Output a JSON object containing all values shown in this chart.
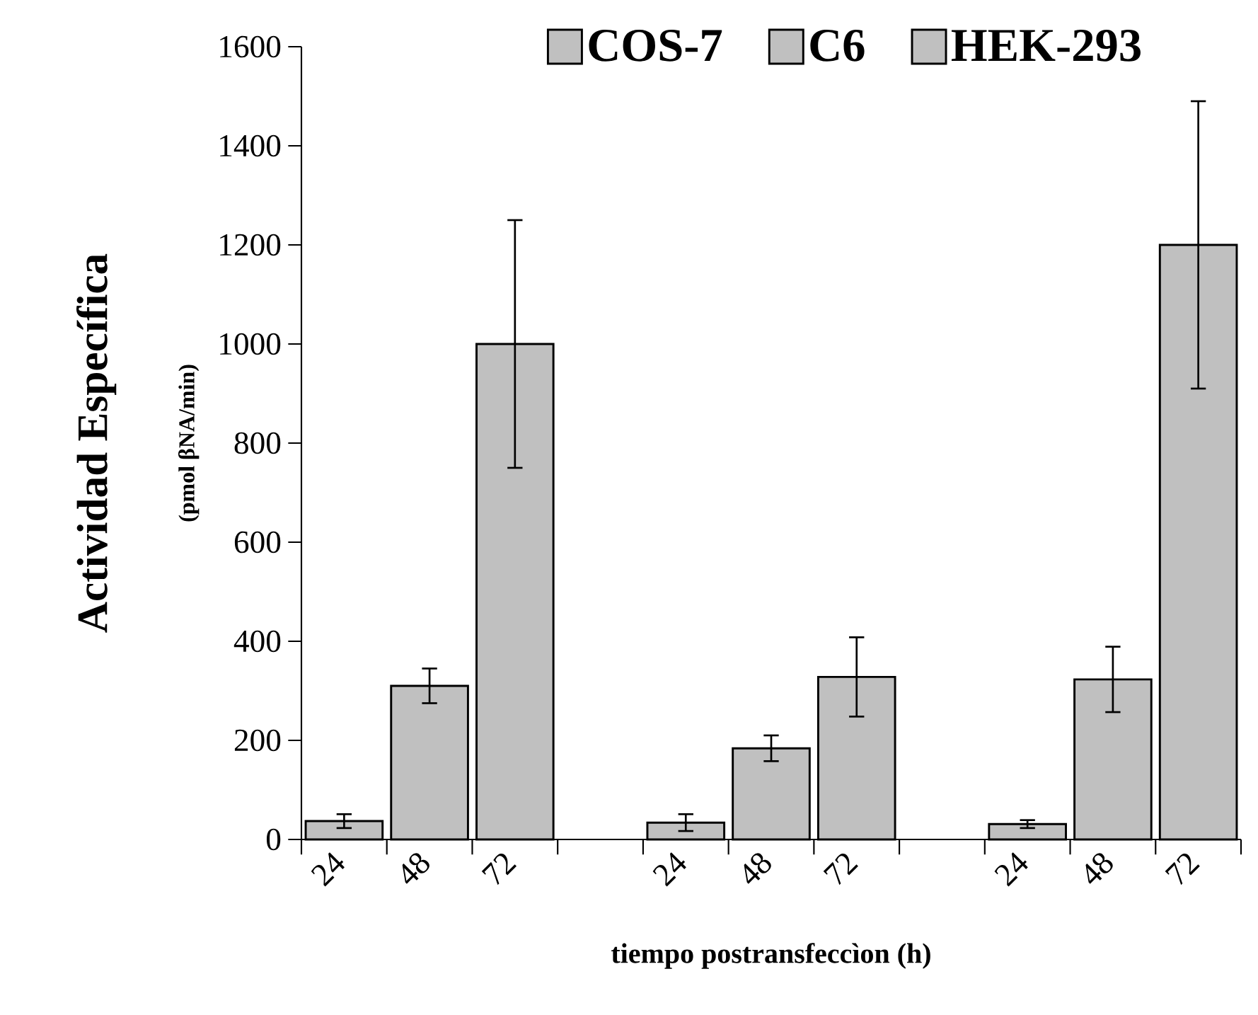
{
  "chart_data": {
    "type": "bar",
    "xlabel": "tiempo postransfeccìon (h)",
    "ylabel": "Actividad Específica",
    "annotations": [
      "(pmol βNA/min)"
    ],
    "categories": [
      "24",
      "48",
      "72",
      null,
      "24",
      "48",
      "72",
      null,
      "24",
      "48",
      "72"
    ],
    "series": [
      {
        "name": "COS-7",
        "color": "#c0c0c0",
        "values": [
          37,
          310,
          1000,
          null,
          null,
          null,
          null,
          null,
          null,
          null,
          null
        ],
        "errors": [
          14,
          35,
          250,
          null,
          null,
          null,
          null,
          null,
          null,
          null,
          null
        ]
      },
      {
        "name": "C6",
        "color": "#c0c0c0",
        "values": [
          null,
          null,
          null,
          null,
          34,
          184,
          328,
          null,
          null,
          null,
          null
        ],
        "errors": [
          null,
          null,
          null,
          null,
          17,
          26,
          80,
          null,
          null,
          null,
          null
        ]
      },
      {
        "name": "HEK-293",
        "color": "#c0c0c0",
        "values": [
          null,
          null,
          null,
          null,
          null,
          null,
          null,
          null,
          31,
          323,
          1200
        ],
        "errors": [
          null,
          null,
          null,
          null,
          null,
          null,
          null,
          null,
          8,
          66,
          290
        ]
      }
    ],
    "ylim": [
      0,
      1600
    ],
    "yticks": [
      0,
      200,
      400,
      600,
      800,
      1000,
      1200,
      1400,
      1600
    ],
    "legend": "top",
    "grid": false
  }
}
